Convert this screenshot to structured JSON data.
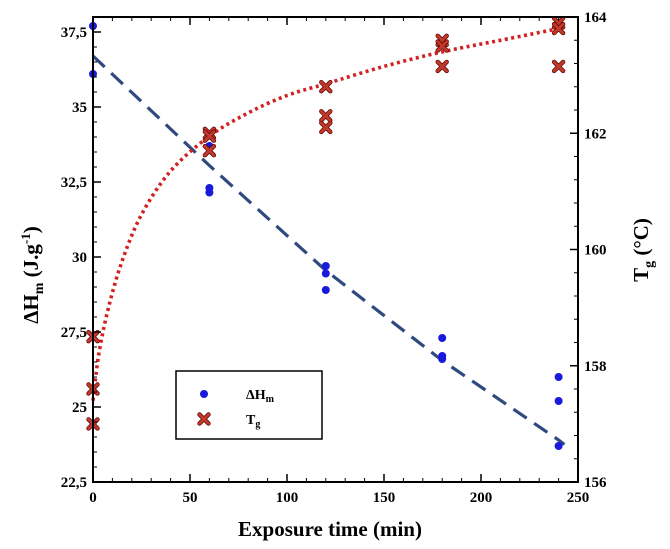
{
  "chart_data": {
    "type": "scatter",
    "xlabel": "Exposure time (min)",
    "x_ticks": [
      "0",
      "50",
      "100",
      "150",
      "200",
      "250"
    ],
    "xlim": [
      0,
      250
    ],
    "y_left": {
      "label_main": "ΔH",
      "label_sub": "m",
      "label_unit": "(J.g",
      "label_unit_sup": "-1",
      "label_unit_end": ")",
      "ylim": [
        22.5,
        38
      ],
      "ticks": [
        "22,5",
        "25",
        "27,5",
        "30",
        "32,5",
        "35",
        "37,5"
      ]
    },
    "y_right": {
      "label_main": "T",
      "label_sub": "g",
      "label_unit": "(°C)",
      "ylim": [
        156,
        164
      ],
      "ticks": [
        "156",
        "158",
        "160",
        "162",
        "164"
      ]
    },
    "series": [
      {
        "name_main": "ΔH",
        "name_sub": "m",
        "axis": "left",
        "marker": "circle",
        "color": "#1a1adb",
        "points": [
          [
            0,
            37.7
          ],
          [
            0,
            36.1
          ],
          [
            60,
            33.7
          ],
          [
            60,
            32.3
          ],
          [
            60,
            32.15
          ],
          [
            120,
            29.7
          ],
          [
            120,
            29.45
          ],
          [
            120,
            28.9
          ],
          [
            180,
            27.3
          ],
          [
            180,
            26.7
          ],
          [
            180,
            26.6
          ],
          [
            240,
            26.0
          ],
          [
            240,
            25.2
          ],
          [
            240,
            23.7
          ]
        ],
        "fit": {
          "style": "dashed",
          "color": "#2e4a7f",
          "points": [
            [
              0,
              36.7
            ],
            [
              60,
              33.05
            ],
            [
              120,
              29.55
            ],
            [
              180,
              26.55
            ],
            [
              240,
              23.9
            ],
            [
              243,
              23.75
            ]
          ]
        }
      },
      {
        "name_main": "T",
        "name_sub": "g",
        "axis": "right",
        "marker": "x",
        "color": "#c0392b",
        "points": [
          [
            0,
            158.5
          ],
          [
            0,
            157.6
          ],
          [
            0,
            157.0
          ],
          [
            60,
            162.0
          ],
          [
            60,
            161.95
          ],
          [
            60,
            161.7
          ],
          [
            120,
            162.8
          ],
          [
            120,
            162.3
          ],
          [
            120,
            162.1
          ],
          [
            180,
            163.6
          ],
          [
            180,
            163.5
          ],
          [
            180,
            163.15
          ],
          [
            240,
            163.9
          ],
          [
            240,
            163.8
          ],
          [
            240,
            163.15
          ]
        ],
        "fit": {
          "style": "dotted",
          "color": "#d42020",
          "points": [
            [
              0,
              157.4
            ],
            [
              3,
              158.2
            ],
            [
              8,
              159.0
            ],
            [
              15,
              159.8
            ],
            [
              25,
              160.6
            ],
            [
              40,
              161.35
            ],
            [
              60,
              161.95
            ],
            [
              80,
              162.35
            ],
            [
              100,
              162.65
            ],
            [
              120,
              162.85
            ],
            [
              150,
              163.15
            ],
            [
              180,
              163.4
            ],
            [
              210,
              163.6
            ],
            [
              240,
              163.8
            ]
          ]
        }
      }
    ],
    "legend": {
      "position": "bottom-left"
    }
  }
}
